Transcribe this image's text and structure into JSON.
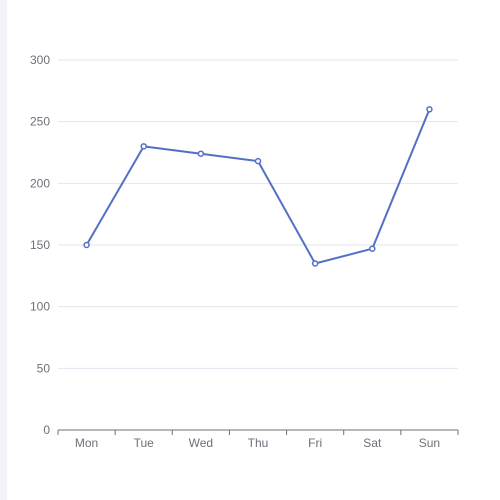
{
  "chart_data": {
    "type": "line",
    "categories": [
      "Mon",
      "Tue",
      "Wed",
      "Thu",
      "Fri",
      "Sat",
      "Sun"
    ],
    "values": [
      150,
      230,
      224,
      218,
      135,
      147,
      260
    ],
    "ylim": [
      0,
      300
    ],
    "yticks": [
      0,
      50,
      100,
      150,
      200,
      250,
      300
    ],
    "grid": true,
    "legend": "none",
    "colors": {
      "line": "#5470c6",
      "grid": "#e0e6f1",
      "axis": "#6e7079",
      "text": "#6e7079"
    }
  }
}
